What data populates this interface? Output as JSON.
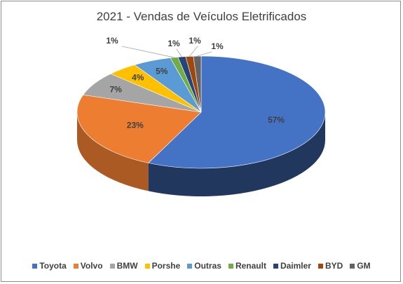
{
  "chart_data": {
    "type": "pie",
    "style": "3d",
    "title": "2021 - Vendas de Veículos Eletrificados",
    "legend_position": "bottom",
    "slices": [
      {
        "name": "Toyota",
        "value": 57,
        "label": "57%",
        "color": "#4472C4"
      },
      {
        "name": "Volvo",
        "value": 23,
        "label": "23%",
        "color": "#ED7D31"
      },
      {
        "name": "BMW",
        "value": 7,
        "label": "7%",
        "color": "#A5A5A5"
      },
      {
        "name": "Porshe",
        "value": 4,
        "label": "4%",
        "color": "#FFC000"
      },
      {
        "name": "Outras",
        "value": 5,
        "label": "5%",
        "color": "#5B9BD5"
      },
      {
        "name": "Renault",
        "value": 1,
        "label": "1%",
        "color": "#70AD47"
      },
      {
        "name": "Daimler",
        "value": 1,
        "label": "1%",
        "color": "#264478"
      },
      {
        "name": "BYD",
        "value": 1,
        "label": "1%",
        "color": "#9E480E"
      },
      {
        "name": "GM",
        "value": 1,
        "label": "1%",
        "color": "#636363"
      }
    ]
  }
}
